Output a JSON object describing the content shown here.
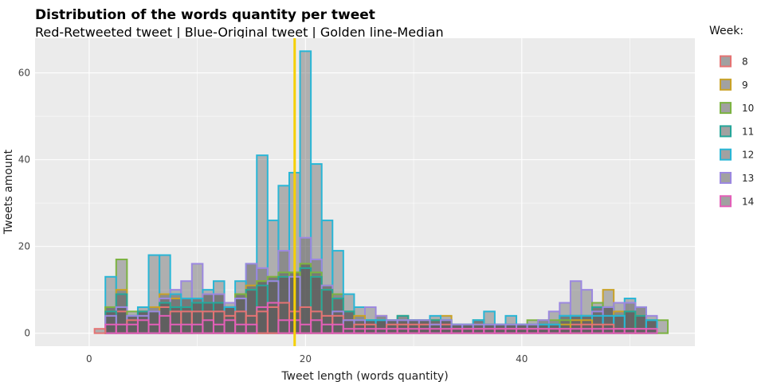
{
  "chart_data": {
    "type": "bar",
    "title": "Distribution of the words quantity per tweet",
    "subtitle": "Red-Retweeted tweet | Blue-Original tweet | Golden line-Median",
    "xlabel": "Tweet length (words quantity)",
    "ylabel": "Tweets amount",
    "xlim": [
      -5,
      56
    ],
    "ylim": [
      -3,
      68
    ],
    "x_ticks": [
      0,
      20,
      40
    ],
    "y_ticks": [
      0,
      20,
      40,
      60
    ],
    "grid": true,
    "median": 19,
    "median_color": "#f5d000",
    "legend_title": "Week:",
    "legend_position": "right",
    "bin_width": 1,
    "x": [
      1,
      2,
      3,
      4,
      5,
      6,
      7,
      8,
      9,
      10,
      11,
      12,
      13,
      14,
      15,
      16,
      17,
      18,
      19,
      20,
      21,
      22,
      23,
      24,
      25,
      26,
      27,
      28,
      29,
      30,
      31,
      32,
      33,
      34,
      35,
      36,
      37,
      38,
      39,
      40,
      41,
      42,
      43,
      44,
      45,
      46,
      47,
      48,
      49,
      50,
      51,
      52,
      53
    ],
    "series": [
      {
        "name": "8",
        "color": "#e57373",
        "values": [
          1,
          5,
          5,
          3,
          5,
          5,
          6,
          5,
          5,
          5,
          5,
          5,
          4,
          5,
          4,
          5,
          6,
          7,
          5,
          6,
          5,
          4,
          4,
          3,
          2,
          2,
          3,
          2,
          2,
          2,
          2,
          2,
          2,
          1,
          1,
          1,
          1,
          1,
          1,
          1,
          1,
          1,
          1,
          1,
          2,
          2,
          2,
          2,
          1,
          1,
          1,
          0,
          0
        ]
      },
      {
        "name": "9",
        "color": "#c9a227",
        "values": [
          0,
          6,
          10,
          4,
          5,
          6,
          9,
          8,
          8,
          8,
          9,
          9,
          6,
          9,
          11,
          12,
          13,
          13,
          14,
          16,
          13,
          10,
          8,
          5,
          4,
          3,
          4,
          3,
          3,
          3,
          3,
          3,
          4,
          2,
          2,
          2,
          2,
          2,
          2,
          2,
          2,
          2,
          2,
          2,
          3,
          3,
          6,
          10,
          5,
          5,
          4,
          3,
          0
        ]
      },
      {
        "name": "10",
        "color": "#7cb342",
        "values": [
          0,
          6,
          17,
          5,
          5,
          5,
          7,
          6,
          6,
          7,
          7,
          7,
          6,
          9,
          10,
          12,
          13,
          14,
          14,
          16,
          14,
          11,
          9,
          5,
          3,
          3,
          3,
          3,
          4,
          3,
          3,
          3,
          3,
          2,
          2,
          3,
          2,
          2,
          2,
          2,
          3,
          3,
          3,
          3,
          4,
          4,
          7,
          6,
          4,
          5,
          4,
          3,
          3
        ]
      },
      {
        "name": "11",
        "color": "#26a69a",
        "values": [
          0,
          5,
          9,
          4,
          5,
          5,
          7,
          6,
          6,
          7,
          7,
          7,
          6,
          8,
          10,
          11,
          12,
          13,
          13,
          15,
          13,
          10,
          8,
          5,
          3,
          3,
          3,
          3,
          4,
          3,
          3,
          3,
          3,
          2,
          2,
          3,
          2,
          2,
          2,
          2,
          2,
          2,
          2,
          4,
          4,
          4,
          6,
          6,
          4,
          5,
          4,
          3,
          0
        ]
      },
      {
        "name": "12",
        "color": "#29b6d6",
        "values": [
          0,
          13,
          6,
          4,
          6,
          18,
          18,
          9,
          8,
          8,
          10,
          12,
          6,
          12,
          16,
          41,
          26,
          34,
          37,
          65,
          39,
          26,
          19,
          9,
          6,
          3,
          3,
          3,
          3,
          3,
          3,
          4,
          3,
          2,
          2,
          3,
          5,
          2,
          4,
          2,
          2,
          2,
          2,
          4,
          4,
          4,
          4,
          4,
          4,
          8,
          6,
          3,
          0
        ]
      },
      {
        "name": "13",
        "color": "#9c88e0",
        "values": [
          0,
          4,
          6,
          4,
          4,
          5,
          8,
          10,
          12,
          16,
          9,
          9,
          7,
          8,
          16,
          15,
          12,
          19,
          13,
          22,
          17,
          11,
          5,
          3,
          3,
          6,
          4,
          3,
          3,
          3,
          3,
          2,
          3,
          2,
          2,
          2,
          2,
          2,
          2,
          2,
          2,
          3,
          5,
          7,
          12,
          10,
          5,
          6,
          7,
          7,
          6,
          4,
          0
        ]
      },
      {
        "name": "14",
        "color": "#e35fb8",
        "values": [
          0,
          2,
          2,
          2,
          3,
          2,
          4,
          2,
          2,
          2,
          3,
          2,
          3,
          2,
          2,
          6,
          7,
          3,
          3,
          2,
          3,
          2,
          2,
          1,
          1,
          1,
          1,
          1,
          1,
          1,
          1,
          1,
          1,
          1,
          1,
          1,
          1,
          1,
          1,
          1,
          1,
          1,
          1,
          1,
          1,
          1,
          1,
          1,
          1,
          1,
          1,
          1,
          0
        ]
      }
    ]
  }
}
